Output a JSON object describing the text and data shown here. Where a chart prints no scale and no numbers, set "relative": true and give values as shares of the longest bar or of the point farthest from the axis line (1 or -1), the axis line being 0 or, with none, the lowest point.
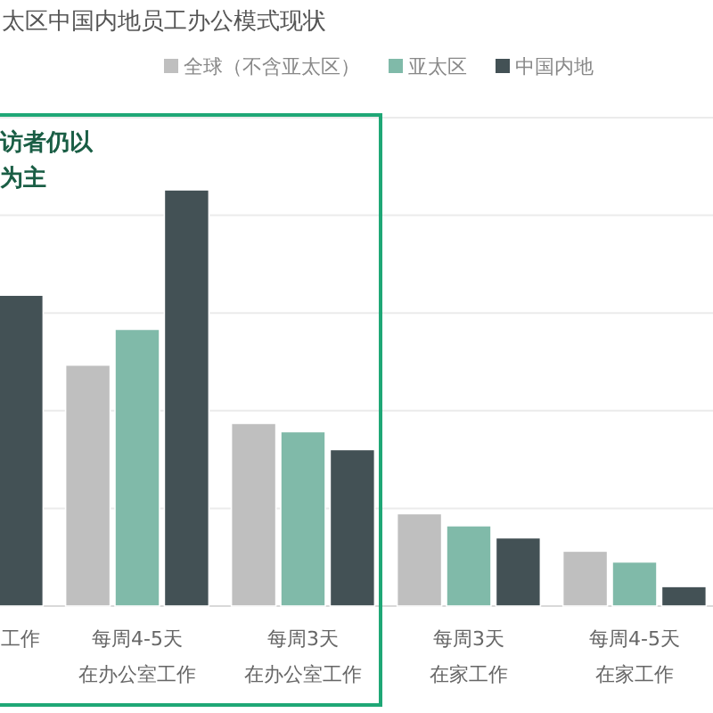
{
  "chart_data": {
    "type": "bar",
    "title": "太区中国内地员工办公模式现状",
    "categories": [
      "工作",
      "每周4-5天在办公室工作",
      "每周3天在办公室工作",
      "每周3天在家工作",
      "每周4-5天在家工作"
    ],
    "relative": true,
    "grid": "y",
    "legend": "top",
    "annotations": [
      "访者仍以",
      "为主"
    ],
    "series": [
      {
        "name": "全球（不含亚太区）",
        "color": "#bfbfbf",
        "values": [
          null,
          0.579,
          0.439,
          0.222,
          0.132
        ]
      },
      {
        "name": "亚太区",
        "color": "#80baa9",
        "values": [
          null,
          0.665,
          0.419,
          0.193,
          0.106
        ]
      },
      {
        "name": "中国内地",
        "color": "#435155",
        "values": [
          0.747,
          1,
          0.376,
          0.164,
          0.047
        ]
      }
    ]
  }
}
